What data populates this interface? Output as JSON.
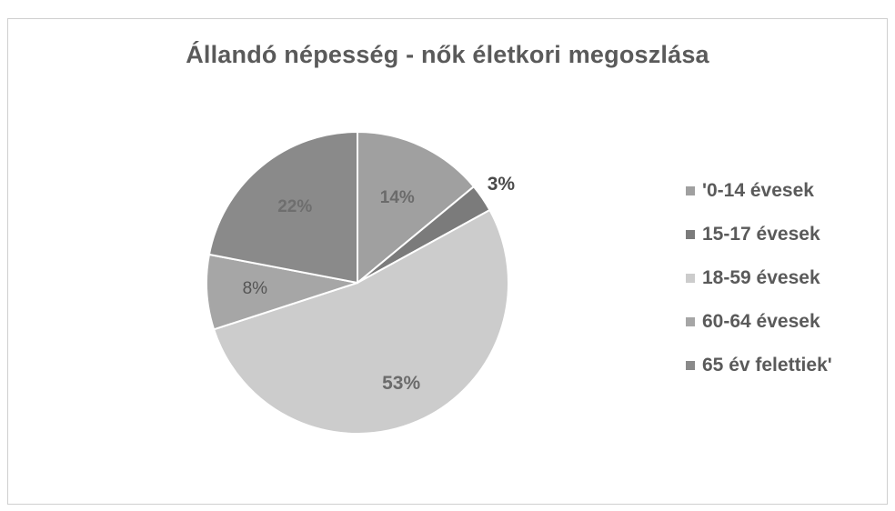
{
  "chart_data": {
    "type": "pie",
    "title": "Állandó népesség - nők életkori megoszlása",
    "categories": [
      "'0-14 évesek",
      "15-17 évesek",
      "18-59 évesek",
      "60-64 évesek",
      "65 év felettiek'"
    ],
    "values": [
      14,
      3,
      53,
      8,
      22
    ],
    "value_labels": [
      "14%",
      "3%",
      "53%",
      "8%",
      "22%"
    ],
    "colors": [
      "#a0a0a0",
      "#7b7b7b",
      "#cccccc",
      "#a6a6a6",
      "#8a8a8a"
    ],
    "label_colors": [
      "#6b6b6b",
      "#4a4a4a",
      "#6b6b6b",
      "#555555",
      "#6e6e6e"
    ],
    "start_angle_deg": 0,
    "direction": "clockwise",
    "legend_position": "right",
    "grid": false
  }
}
